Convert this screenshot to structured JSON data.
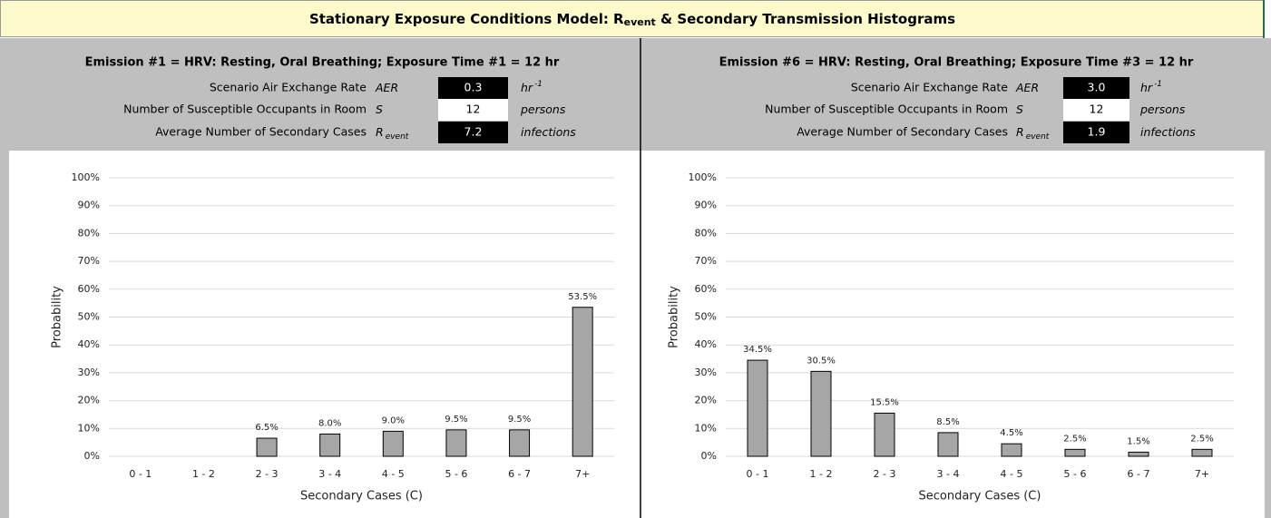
{
  "title_parts": [
    "Stationary Exposure Conditions Model: R",
    "event",
    " & Secondary Transmission Histograms"
  ],
  "panels": [
    {
      "heading": "Emission #1 = HRV: Resting, Oral Breathing; Exposure Time #1 = 12 hr",
      "rows": [
        {
          "label": "Scenario Air Exchange Rate",
          "symbol": [
            "AER"
          ],
          "value": "0.3",
          "unit": [
            "hr",
            "-1"
          ]
        },
        {
          "label": "Number of Susceptible Occupants in Room",
          "symbol": [
            "S"
          ],
          "value": "12",
          "unit": [
            "persons"
          ]
        },
        {
          "label": "Average Number of Secondary Cases",
          "symbol": [
            "R",
            "event"
          ],
          "value": "7.2",
          "unit": [
            "infections"
          ]
        }
      ]
    },
    {
      "heading": "Emission #6 = HRV: Resting, Oral Breathing; Exposure Time #3 = 12 hr",
      "rows": [
        {
          "label": "Scenario Air Exchange Rate",
          "symbol": [
            "AER"
          ],
          "value": "3.0",
          "unit": [
            "hr",
            "-1"
          ]
        },
        {
          "label": "Number of Susceptible Occupants in Room",
          "symbol": [
            "S"
          ],
          "value": "12",
          "unit": [
            "persons"
          ]
        },
        {
          "label": "Average Number of Secondary Cases",
          "symbol": [
            "R",
            "event"
          ],
          "value": "1.9",
          "unit": [
            "infections"
          ]
        }
      ]
    }
  ],
  "chart_data": [
    {
      "type": "bar",
      "ylabel": "Probability",
      "xlabel": "Secondary Cases (C)",
      "categories": [
        "0 - 1",
        "1 - 2",
        "2 - 3",
        "3 - 4",
        "4 - 5",
        "5 - 6",
        "6 - 7",
        "7+"
      ],
      "values": [
        0,
        0,
        6.5,
        8.0,
        9.0,
        9.5,
        9.5,
        53.5
      ],
      "value_labels": [
        null,
        null,
        "6.5%",
        "8.0%",
        "9.0%",
        "9.5%",
        "9.5%",
        "53.5%"
      ],
      "color": "#a6a6a6",
      "grid": true,
      "ylim": [
        0,
        100
      ],
      "yticks": [
        {
          "value": 0,
          "label": "0%"
        },
        {
          "value": 10,
          "label": "10%"
        },
        {
          "value": 20,
          "label": "20%"
        },
        {
          "value": 30,
          "label": "30%"
        },
        {
          "value": 40,
          "label": "40%"
        },
        {
          "value": 50,
          "label": "50%"
        },
        {
          "value": 60,
          "label": "60%"
        },
        {
          "value": 70,
          "label": "70%"
        },
        {
          "value": 80,
          "label": "80%"
        },
        {
          "value": 90,
          "label": "90%"
        },
        {
          "value": 100,
          "label": "100%"
        }
      ]
    },
    {
      "type": "bar",
      "ylabel": "Probability",
      "xlabel": "Secondary Cases (C)",
      "categories": [
        "0 - 1",
        "1 - 2",
        "2 - 3",
        "3 - 4",
        "4 - 5",
        "5 - 6",
        "6 - 7",
        "7+"
      ],
      "values": [
        34.5,
        30.5,
        15.5,
        8.5,
        4.5,
        2.5,
        1.5,
        2.5
      ],
      "value_labels": [
        "34.5%",
        "30.5%",
        "15.5%",
        "8.5%",
        "4.5%",
        "2.5%",
        "1.5%",
        "2.5%"
      ],
      "color": "#a6a6a6",
      "grid": true,
      "ylim": [
        0,
        100
      ],
      "yticks": [
        {
          "value": 0,
          "label": "0%"
        },
        {
          "value": 10,
          "label": "10%"
        },
        {
          "value": 20,
          "label": "20%"
        },
        {
          "value": 30,
          "label": "30%"
        },
        {
          "value": 40,
          "label": "40%"
        },
        {
          "value": 50,
          "label": "50%"
        },
        {
          "value": 60,
          "label": "60%"
        },
        {
          "value": 70,
          "label": "70%"
        },
        {
          "value": 80,
          "label": "80%"
        },
        {
          "value": 90,
          "label": "90%"
        },
        {
          "value": 100,
          "label": "100%"
        }
      ]
    }
  ]
}
